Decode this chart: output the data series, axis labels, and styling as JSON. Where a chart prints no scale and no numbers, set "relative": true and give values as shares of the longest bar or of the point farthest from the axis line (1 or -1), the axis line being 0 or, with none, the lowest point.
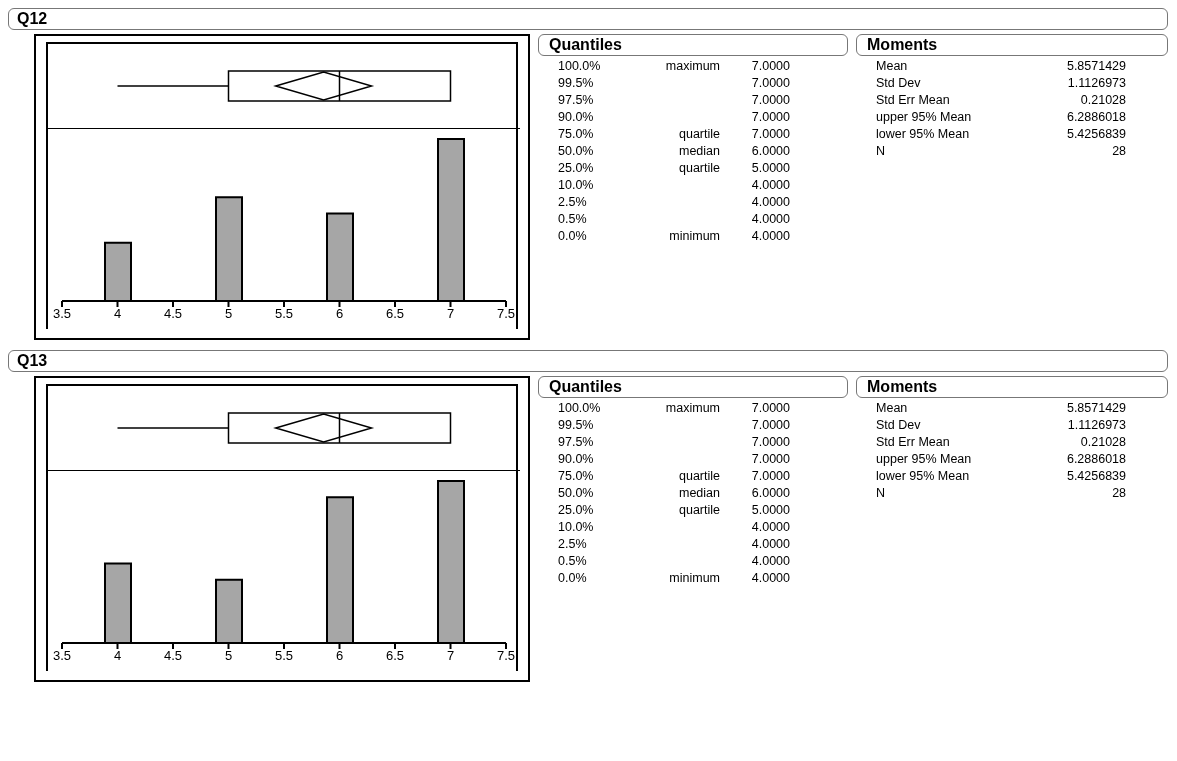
{
  "chart_data": [
    {
      "type": "bar",
      "title": "Q12",
      "relative": true,
      "xlim": [
        3.5,
        7.5
      ],
      "xticks": [
        3.5,
        4,
        4.5,
        5,
        5.5,
        6,
        6.5,
        7,
        7.5
      ],
      "x": [
        4,
        5,
        6,
        7
      ],
      "values": [
        0.36,
        0.64,
        0.54,
        1
      ],
      "color": "#a6a6a6"
    },
    {
      "type": "other",
      "title": "Quantiles",
      "annotations": [
        "100.0%\tmaximum\t7.0000",
        "99.5%\t\t7.0000",
        "97.5%\t\t7.0000",
        "90.0%\t\t7.0000",
        "75.0%\tquartile\t7.0000",
        "50.0%\tmedian\t6.0000",
        "25.0%\tquartile\t5.0000",
        "10.0%\t\t4.0000",
        "2.5%\t\t4.0000",
        "0.5%\t\t4.0000",
        "0.0%\tminimum\t4.0000"
      ]
    },
    {
      "type": "other",
      "title": "Moments",
      "annotations": [
        "Mean\t5.8571429",
        "Std Dev\t1.1126973",
        "Std Err Mean\t0.21028",
        "upper 95% Mean\t6.2886018",
        "lower 95% Mean\t5.4256839",
        "N\t28"
      ]
    },
    {
      "type": "bar",
      "title": "Q13",
      "relative": true,
      "xlim": [
        3.5,
        7.5
      ],
      "xticks": [
        3.5,
        4,
        4.5,
        5,
        5.5,
        6,
        6.5,
        7,
        7.5
      ],
      "x": [
        4,
        5,
        6,
        7
      ],
      "values": [
        0.49,
        0.39,
        0.9,
        1
      ],
      "color": "#a6a6a6"
    },
    {
      "type": "other",
      "title": "Quantiles",
      "annotations": [
        "100.0%\tmaximum\t7.0000",
        "99.5%\t\t7.0000",
        "97.5%\t\t7.0000",
        "90.0%\t\t7.0000",
        "75.0%\tquartile\t7.0000",
        "50.0%\tmedian\t6.0000",
        "25.0%\tquartile\t5.0000",
        "10.0%\t\t4.0000",
        "2.5%\t\t4.0000",
        "0.5%\t\t4.0000",
        "0.0%\tminimum\t4.0000"
      ]
    },
    {
      "type": "other",
      "title": "Moments",
      "annotations": [
        "Mean\t5.8571429",
        "Std Dev\t1.1126973",
        "Std Err Mean\t0.21028",
        "upper 95% Mean\t6.2886018",
        "lower 95% Mean\t5.4256839",
        "N\t28"
      ]
    }
  ]
}
